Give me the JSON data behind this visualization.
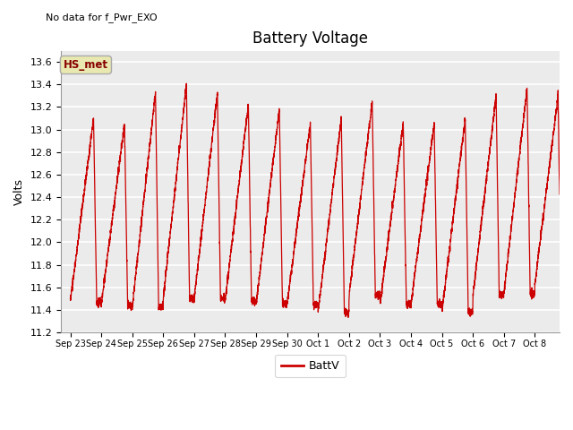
{
  "title": "Battery Voltage",
  "subtitle": "No data for f_Pwr_EXO",
  "ylabel": "Volts",
  "legend_label": "BattV",
  "legend_line_label": "HS_met",
  "ylim": [
    11.2,
    13.7
  ],
  "yticks": [
    11.2,
    11.4,
    11.6,
    11.8,
    12.0,
    12.2,
    12.4,
    12.6,
    12.8,
    13.0,
    13.2,
    13.4,
    13.6
  ],
  "line_color": "#cc0000",
  "bg_color": "#ffffff",
  "plot_bg": "#ebebeb",
  "hs_met_box_color": "#e8e8b0",
  "hs_met_text_color": "#880000",
  "grid_color": "#ffffff",
  "tick_labels": [
    "Sep 23",
    "Sep 24",
    "Sep 25",
    "Sep 26",
    "Sep 27",
    "Sep 28",
    "Sep 29",
    "Sep 30",
    "Oct 1",
    "Oct 2",
    "Oct 3",
    "Oct 4",
    "Oct 5",
    "Oct 6",
    "Oct 7",
    "Oct 8"
  ],
  "figsize": [
    6.4,
    4.8
  ],
  "dpi": 100
}
